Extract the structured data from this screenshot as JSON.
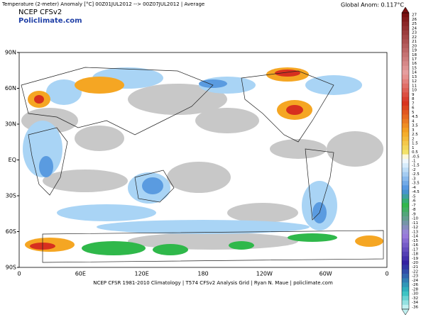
{
  "header": {
    "title": "Temperature (2-meter) Anomaly  [°C]  00Z01JUL2012 --> 00Z07JUL2012 | Average",
    "global_anom": "Global Anom: 0.117°C",
    "model": "NCEP  CFSv2",
    "site": "Policlimate.com"
  },
  "map": {
    "lat_labels": [
      "90N",
      "60N",
      "30N",
      "EQ",
      "30S",
      "60S",
      "90S"
    ],
    "lon_labels": [
      "0",
      "60E",
      "120E",
      "180",
      "120W",
      "60W",
      "0"
    ]
  },
  "colorbar": {
    "labels": [
      "27",
      "26",
      "25",
      "24",
      "23",
      "22",
      "21",
      "20",
      "19",
      "18",
      "17",
      "16",
      "15",
      "14",
      "13",
      "12",
      "11",
      "10",
      "9",
      "8",
      "7",
      "6",
      "5",
      "4.5",
      "4",
      "3.5",
      "3",
      "2.5",
      "2",
      "1.5",
      "1",
      "0.5",
      "-0.5",
      "-1",
      "-1.5",
      "-2",
      "-2.5",
      "-3",
      "-3.5",
      "-4",
      "-4.5",
      "-5",
      "-6",
      "-7",
      "-8",
      "-9",
      "-10",
      "-11",
      "-12",
      "-13",
      "-14",
      "-15",
      "-16",
      "-17",
      "-18",
      "-19",
      "-20",
      "-21",
      "-22",
      "-23",
      "-24",
      "-26",
      "-28",
      "-30",
      "-32",
      "-34",
      "-36"
    ]
  },
  "footer": "NCEP CFSR 1981-2010 Climatology | T574 CFSv2 Analysis Grid | Ryan N. Maue | policlimate.com"
}
